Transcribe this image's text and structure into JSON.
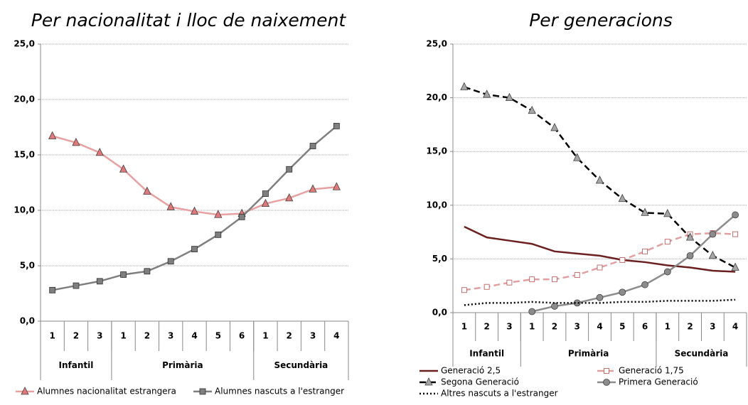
{
  "chart_data": [
    {
      "type": "line",
      "title": "Per nacionalitat i lloc de naixement",
      "categories": [
        "1",
        "2",
        "3",
        "1",
        "2",
        "3",
        "4",
        "5",
        "6",
        "1",
        "2",
        "3",
        "4"
      ],
      "groups": [
        {
          "label": "Infantil",
          "span": 3
        },
        {
          "label": "Primària",
          "span": 6
        },
        {
          "label": "Secundària",
          "span": 4
        }
      ],
      "ylim": [
        0,
        25
      ],
      "yticks": [
        {
          "value": 0,
          "label": "0,0"
        },
        {
          "value": 5,
          "label": "5,0"
        },
        {
          "value": 10,
          "label": "10,0"
        },
        {
          "value": 15,
          "label": "15,0"
        },
        {
          "value": 20,
          "label": "20,0"
        },
        {
          "value": 25,
          "label": "25,0"
        }
      ],
      "grid": true,
      "series": [
        {
          "name": "Alumnes nacionalitat  estrangera",
          "color": "#e8a0a0",
          "marker": "triangle",
          "marker_color": "#e07a7a",
          "dash": "solid",
          "values": [
            16.7,
            16.1,
            15.2,
            13.7,
            11.7,
            10.3,
            9.9,
            9.6,
            9.7,
            10.6,
            11.1,
            11.9,
            12.1
          ]
        },
        {
          "name": "Alumnes nascuts a l'estranger",
          "color": "#7f7f7f",
          "marker": "square",
          "marker_color": "#7f7f7f",
          "dash": "solid",
          "values": [
            2.8,
            3.2,
            3.6,
            4.2,
            4.5,
            5.4,
            6.5,
            7.8,
            9.4,
            11.5,
            13.7,
            15.8,
            17.6
          ]
        }
      ]
    },
    {
      "type": "line",
      "title": "Per generacions",
      "categories": [
        "1",
        "2",
        "3",
        "1",
        "2",
        "3",
        "4",
        "5",
        "6",
        "1",
        "2",
        "3",
        "4"
      ],
      "groups": [
        {
          "label": "Infantil",
          "span": 3
        },
        {
          "label": "Primària",
          "span": 6
        },
        {
          "label": "Secundària",
          "span": 4
        }
      ],
      "ylim": [
        0,
        25
      ],
      "yticks": [
        {
          "value": 0,
          "label": "0,0"
        },
        {
          "value": 5,
          "label": "5,0"
        },
        {
          "value": 10,
          "label": "10,0"
        },
        {
          "value": 15,
          "label": "15,0"
        },
        {
          "value": 20,
          "label": "20,0"
        },
        {
          "value": 25,
          "label": "25,0"
        }
      ],
      "grid": true,
      "series": [
        {
          "name": "Generació 2,5",
          "color": "#6b1f1f",
          "marker": "none",
          "dash": "solid",
          "values": [
            8.0,
            7.0,
            6.7,
            6.4,
            5.7,
            5.5,
            5.3,
            4.9,
            4.7,
            4.4,
            4.2,
            3.9,
            3.8
          ]
        },
        {
          "name": "Generació 1,75",
          "color": "#e0a0a0",
          "marker": "open-square",
          "marker_color": "#c06060",
          "dash": "dashed",
          "values": [
            2.1,
            2.4,
            2.8,
            3.1,
            3.1,
            3.5,
            4.2,
            4.9,
            5.7,
            6.6,
            7.3,
            7.4,
            7.3
          ]
        },
        {
          "name": "Segona Generació",
          "color": "#000000",
          "marker": "triangle",
          "marker_color": "#a6a6a6",
          "dash": "dashed",
          "values": [
            21.0,
            20.3,
            20.0,
            18.8,
            17.2,
            14.4,
            12.3,
            10.6,
            9.3,
            9.2,
            7.0,
            5.3,
            4.2
          ]
        },
        {
          "name": "Primera Generació",
          "color": "#8c8c8c",
          "marker": "circle",
          "marker_color": "#8c8c8c",
          "dash": "solid",
          "values": [
            null,
            null,
            null,
            0.1,
            0.6,
            0.9,
            1.4,
            1.9,
            2.6,
            3.8,
            5.3,
            7.3,
            9.1
          ]
        },
        {
          "name": "Altres nascuts a l'estranger",
          "color": "#000000",
          "marker": "none",
          "dash": "dotted",
          "values": [
            0.7,
            0.9,
            0.9,
            1.0,
            0.9,
            0.9,
            0.9,
            1.0,
            1.0,
            1.1,
            1.1,
            1.1,
            1.2
          ]
        }
      ]
    }
  ]
}
